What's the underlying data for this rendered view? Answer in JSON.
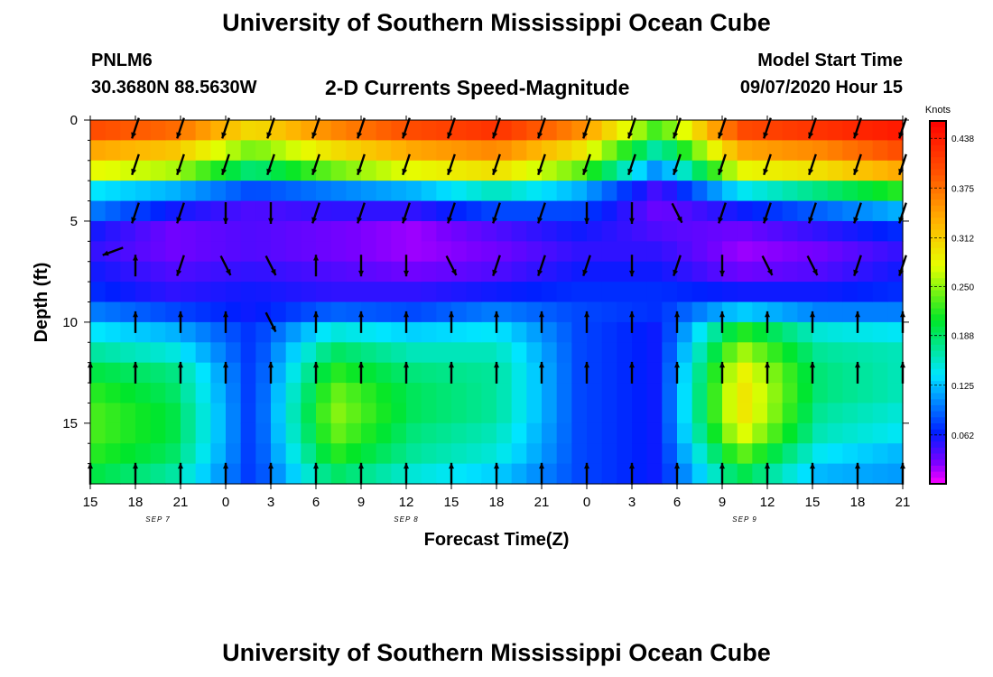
{
  "header": {
    "title": "University of Southern Mississippi Ocean Cube",
    "station_name": "PNLM6",
    "station_coords": "30.3680N 88.5630W",
    "subtitle": "2-D Currents Speed-Magnitude",
    "model_label": "Model Start Time",
    "model_value": "09/07/2020 Hour 15"
  },
  "footer": {
    "title": "University of Southern Mississippi Ocean Cube"
  },
  "chart_data": {
    "type": "heatmap",
    "xlabel": "Forecast Time(Z)",
    "ylabel": "Depth (ft)",
    "x_tick_labels": [
      "15",
      "18",
      "21",
      "0",
      "3",
      "6",
      "9",
      "12",
      "15",
      "18",
      "21",
      "0",
      "3",
      "6",
      "9",
      "12",
      "15",
      "18",
      "21"
    ],
    "x_hours": [
      0,
      54
    ],
    "date_labels": [
      {
        "label": "SEP 7",
        "hour": 4.5
      },
      {
        "label": "SEP 8",
        "hour": 21
      },
      {
        "label": "SEP 9",
        "hour": 43.5
      }
    ],
    "y_tick_labels": [
      "0",
      "5",
      "10",
      "15"
    ],
    "y_ticks": [
      0,
      5,
      10,
      15
    ],
    "ylim": [
      0,
      18
    ],
    "colorbar": {
      "title": "Knots",
      "tick_labels": [
        "0.438",
        "0.375",
        "0.312",
        "0.250",
        "0.188",
        "0.125",
        "0.062"
      ],
      "ticks": [
        0.438,
        0.375,
        0.312,
        0.25,
        0.188,
        0.125,
        0.062
      ],
      "range": [
        0,
        0.46
      ]
    },
    "depth_rows": [
      0.5,
      1.5,
      2.5,
      3.5,
      4.5,
      5.5,
      6.5,
      7.5,
      8.5,
      9.5,
      10.5,
      11.5,
      12.5,
      13.5,
      14.5,
      15.5,
      16.5,
      17.5
    ],
    "speed_profiles": [
      [
        0.4,
        0.34,
        0.28,
        0.14,
        0.1,
        0.06,
        0.05,
        0.06,
        0.07,
        0.1,
        0.14,
        0.17,
        0.2,
        0.22,
        0.23,
        0.23,
        0.22,
        0.2
      ],
      [
        0.38,
        0.32,
        0.26,
        0.12,
        0.06,
        0.03,
        0.03,
        0.04,
        0.05,
        0.08,
        0.12,
        0.15,
        0.18,
        0.19,
        0.2,
        0.2,
        0.19,
        0.17
      ],
      [
        0.3,
        0.24,
        0.18,
        0.08,
        0.04,
        0.04,
        0.04,
        0.05,
        0.06,
        0.06,
        0.07,
        0.07,
        0.07,
        0.07,
        0.07,
        0.07,
        0.07,
        0.07
      ],
      [
        0.36,
        0.3,
        0.24,
        0.1,
        0.05,
        0.03,
        0.03,
        0.04,
        0.05,
        0.09,
        0.15,
        0.19,
        0.22,
        0.24,
        0.25,
        0.24,
        0.22,
        0.19
      ],
      [
        0.4,
        0.34,
        0.28,
        0.12,
        0.05,
        0.02,
        0.02,
        0.03,
        0.05,
        0.08,
        0.13,
        0.16,
        0.18,
        0.19,
        0.19,
        0.18,
        0.17,
        0.15
      ],
      [
        0.42,
        0.36,
        0.3,
        0.16,
        0.08,
        0.04,
        0.03,
        0.04,
        0.06,
        0.1,
        0.14,
        0.16,
        0.17,
        0.17,
        0.17,
        0.16,
        0.15,
        0.13
      ],
      [
        0.36,
        0.3,
        0.24,
        0.12,
        0.08,
        0.06,
        0.05,
        0.06,
        0.07,
        0.08,
        0.08,
        0.08,
        0.08,
        0.08,
        0.08,
        0.08,
        0.08,
        0.08
      ],
      [
        0.22,
        0.16,
        0.1,
        0.04,
        0.03,
        0.04,
        0.05,
        0.06,
        0.07,
        0.07,
        0.06,
        0.06,
        0.06,
        0.06,
        0.06,
        0.06,
        0.06,
        0.06
      ],
      [
        0.4,
        0.34,
        0.28,
        0.14,
        0.06,
        0.03,
        0.02,
        0.03,
        0.06,
        0.13,
        0.22,
        0.26,
        0.29,
        0.3,
        0.3,
        0.28,
        0.24,
        0.2
      ],
      [
        0.42,
        0.36,
        0.3,
        0.18,
        0.09,
        0.05,
        0.03,
        0.04,
        0.06,
        0.1,
        0.15,
        0.17,
        0.18,
        0.18,
        0.17,
        0.16,
        0.14,
        0.12
      ],
      [
        0.44,
        0.4,
        0.34,
        0.22,
        0.12,
        0.07,
        0.05,
        0.06,
        0.07,
        0.1,
        0.14,
        0.16,
        0.16,
        0.16,
        0.15,
        0.14,
        0.12,
        0.11
      ]
    ],
    "arrows": [
      {
        "hour": 3,
        "depth": 0.4,
        "dir": "dsw"
      },
      {
        "hour": 6,
        "depth": 0.4,
        "dir": "dsw"
      },
      {
        "hour": 9,
        "depth": 0.4,
        "dir": "dsw"
      },
      {
        "hour": 12,
        "depth": 0.4,
        "dir": "dsw"
      },
      {
        "hour": 15,
        "depth": 0.4,
        "dir": "dsw"
      },
      {
        "hour": 18,
        "depth": 0.4,
        "dir": "dsw"
      },
      {
        "hour": 21,
        "depth": 0.4,
        "dir": "dsw"
      },
      {
        "hour": 24,
        "depth": 0.4,
        "dir": "dsw"
      },
      {
        "hour": 27,
        "depth": 0.4,
        "dir": "dsw"
      },
      {
        "hour": 30,
        "depth": 0.4,
        "dir": "dsw"
      },
      {
        "hour": 33,
        "depth": 0.4,
        "dir": "dsw"
      },
      {
        "hour": 36,
        "depth": 0.4,
        "dir": "dsw"
      },
      {
        "hour": 39,
        "depth": 0.4,
        "dir": "dsw"
      },
      {
        "hour": 42,
        "depth": 0.4,
        "dir": "dsw"
      },
      {
        "hour": 45,
        "depth": 0.4,
        "dir": "dsw"
      },
      {
        "hour": 48,
        "depth": 0.4,
        "dir": "dsw"
      },
      {
        "hour": 51,
        "depth": 0.4,
        "dir": "dsw"
      },
      {
        "hour": 54,
        "depth": 0.4,
        "dir": "dsw"
      },
      {
        "hour": 3,
        "depth": 2.2,
        "dir": "dsw"
      },
      {
        "hour": 6,
        "depth": 2.2,
        "dir": "dsw"
      },
      {
        "hour": 9,
        "depth": 2.2,
        "dir": "dsw"
      },
      {
        "hour": 12,
        "depth": 2.2,
        "dir": "dsw"
      },
      {
        "hour": 15,
        "depth": 2.2,
        "dir": "dsw"
      },
      {
        "hour": 18,
        "depth": 2.2,
        "dir": "dsw"
      },
      {
        "hour": 21,
        "depth": 2.2,
        "dir": "dsw"
      },
      {
        "hour": 24,
        "depth": 2.2,
        "dir": "dsw"
      },
      {
        "hour": 27,
        "depth": 2.2,
        "dir": "dsw"
      },
      {
        "hour": 30,
        "depth": 2.2,
        "dir": "dsw"
      },
      {
        "hour": 33,
        "depth": 2.2,
        "dir": "dsw"
      },
      {
        "hour": 36,
        "depth": 2.2,
        "dir": "dsw"
      },
      {
        "hour": 39,
        "depth": 2.2,
        "dir": "dsw"
      },
      {
        "hour": 42,
        "depth": 2.2,
        "dir": "dsw"
      },
      {
        "hour": 45,
        "depth": 2.2,
        "dir": "dsw"
      },
      {
        "hour": 48,
        "depth": 2.2,
        "dir": "dsw"
      },
      {
        "hour": 51,
        "depth": 2.2,
        "dir": "dsw"
      },
      {
        "hour": 54,
        "depth": 2.2,
        "dir": "dsw"
      },
      {
        "hour": 3,
        "depth": 4.6,
        "dir": "dsw"
      },
      {
        "hour": 6,
        "depth": 4.6,
        "dir": "dsw"
      },
      {
        "hour": 9,
        "depth": 4.6,
        "dir": "d"
      },
      {
        "hour": 12,
        "depth": 4.6,
        "dir": "d"
      },
      {
        "hour": 15,
        "depth": 4.6,
        "dir": "dsw"
      },
      {
        "hour": 18,
        "depth": 4.6,
        "dir": "dsw"
      },
      {
        "hour": 21,
        "depth": 4.6,
        "dir": "dsw"
      },
      {
        "hour": 24,
        "depth": 4.6,
        "dir": "dsw"
      },
      {
        "hour": 27,
        "depth": 4.6,
        "dir": "dsw"
      },
      {
        "hour": 30,
        "depth": 4.6,
        "dir": "dsw"
      },
      {
        "hour": 33,
        "depth": 4.6,
        "dir": "d"
      },
      {
        "hour": 36,
        "depth": 4.6,
        "dir": "d"
      },
      {
        "hour": 39,
        "depth": 4.6,
        "dir": "dse"
      },
      {
        "hour": 42,
        "depth": 4.6,
        "dir": "dsw"
      },
      {
        "hour": 45,
        "depth": 4.6,
        "dir": "dsw"
      },
      {
        "hour": 48,
        "depth": 4.6,
        "dir": "dsw"
      },
      {
        "hour": 51,
        "depth": 4.6,
        "dir": "dsw"
      },
      {
        "hour": 54,
        "depth": 4.6,
        "dir": "dsw"
      },
      {
        "hour": 1.5,
        "depth": 6.5,
        "dir": "w"
      },
      {
        "hour": 3,
        "depth": 7.2,
        "dir": "u"
      },
      {
        "hour": 6,
        "depth": 7.2,
        "dir": "dsw"
      },
      {
        "hour": 9,
        "depth": 7.2,
        "dir": "dse"
      },
      {
        "hour": 12,
        "depth": 7.2,
        "dir": "dse"
      },
      {
        "hour": 15,
        "depth": 7.2,
        "dir": "u"
      },
      {
        "hour": 18,
        "depth": 7.2,
        "dir": "d"
      },
      {
        "hour": 21,
        "depth": 7.2,
        "dir": "d"
      },
      {
        "hour": 24,
        "depth": 7.2,
        "dir": "dse"
      },
      {
        "hour": 27,
        "depth": 7.2,
        "dir": "dsw"
      },
      {
        "hour": 30,
        "depth": 7.2,
        "dir": "dsw"
      },
      {
        "hour": 33,
        "depth": 7.2,
        "dir": "dsw"
      },
      {
        "hour": 36,
        "depth": 7.2,
        "dir": "d"
      },
      {
        "hour": 39,
        "depth": 7.2,
        "dir": "dsw"
      },
      {
        "hour": 42,
        "depth": 7.2,
        "dir": "d"
      },
      {
        "hour": 45,
        "depth": 7.2,
        "dir": "dse"
      },
      {
        "hour": 48,
        "depth": 7.2,
        "dir": "dse"
      },
      {
        "hour": 51,
        "depth": 7.2,
        "dir": "dsw"
      },
      {
        "hour": 54,
        "depth": 7.2,
        "dir": "dsw"
      },
      {
        "hour": 3,
        "depth": 10,
        "dir": "u"
      },
      {
        "hour": 6,
        "depth": 10,
        "dir": "u"
      },
      {
        "hour": 9,
        "depth": 10,
        "dir": "u"
      },
      {
        "hour": 12,
        "depth": 10,
        "dir": "dse"
      },
      {
        "hour": 15,
        "depth": 10,
        "dir": "u"
      },
      {
        "hour": 18,
        "depth": 10,
        "dir": "u"
      },
      {
        "hour": 21,
        "depth": 10,
        "dir": "u"
      },
      {
        "hour": 24,
        "depth": 10,
        "dir": "u"
      },
      {
        "hour": 27,
        "depth": 10,
        "dir": "u"
      },
      {
        "hour": 30,
        "depth": 10,
        "dir": "u"
      },
      {
        "hour": 33,
        "depth": 10,
        "dir": "u"
      },
      {
        "hour": 36,
        "depth": 10,
        "dir": "u"
      },
      {
        "hour": 39,
        "depth": 10,
        "dir": "u"
      },
      {
        "hour": 42,
        "depth": 10,
        "dir": "u"
      },
      {
        "hour": 45,
        "depth": 10,
        "dir": "u"
      },
      {
        "hour": 48,
        "depth": 10,
        "dir": "u"
      },
      {
        "hour": 51,
        "depth": 10,
        "dir": "u"
      },
      {
        "hour": 54,
        "depth": 10,
        "dir": "u"
      },
      {
        "hour": 0,
        "depth": 12.5,
        "dir": "u"
      },
      {
        "hour": 3,
        "depth": 12.5,
        "dir": "u"
      },
      {
        "hour": 6,
        "depth": 12.5,
        "dir": "u"
      },
      {
        "hour": 9,
        "depth": 12.5,
        "dir": "u"
      },
      {
        "hour": 12,
        "depth": 12.5,
        "dir": "u"
      },
      {
        "hour": 15,
        "depth": 12.5,
        "dir": "u"
      },
      {
        "hour": 18,
        "depth": 12.5,
        "dir": "u"
      },
      {
        "hour": 21,
        "depth": 12.5,
        "dir": "u"
      },
      {
        "hour": 24,
        "depth": 12.5,
        "dir": "u"
      },
      {
        "hour": 27,
        "depth": 12.5,
        "dir": "u"
      },
      {
        "hour": 30,
        "depth": 12.5,
        "dir": "u"
      },
      {
        "hour": 33,
        "depth": 12.5,
        "dir": "u"
      },
      {
        "hour": 36,
        "depth": 12.5,
        "dir": "u"
      },
      {
        "hour": 39,
        "depth": 12.5,
        "dir": "u"
      },
      {
        "hour": 42,
        "depth": 12.5,
        "dir": "u"
      },
      {
        "hour": 45,
        "depth": 12.5,
        "dir": "u"
      },
      {
        "hour": 48,
        "depth": 12.5,
        "dir": "u"
      },
      {
        "hour": 51,
        "depth": 12.5,
        "dir": "u"
      },
      {
        "hour": 54,
        "depth": 12.5,
        "dir": "u"
      },
      {
        "hour": 0,
        "depth": 17.5,
        "dir": "u"
      },
      {
        "hour": 3,
        "depth": 17.5,
        "dir": "u"
      },
      {
        "hour": 6,
        "depth": 17.5,
        "dir": "u"
      },
      {
        "hour": 9,
        "depth": 17.5,
        "dir": "u"
      },
      {
        "hour": 12,
        "depth": 17.5,
        "dir": "u"
      },
      {
        "hour": 15,
        "depth": 17.5,
        "dir": "u"
      },
      {
        "hour": 18,
        "depth": 17.5,
        "dir": "u"
      },
      {
        "hour": 21,
        "depth": 17.5,
        "dir": "u"
      },
      {
        "hour": 24,
        "depth": 17.5,
        "dir": "u"
      },
      {
        "hour": 27,
        "depth": 17.5,
        "dir": "u"
      },
      {
        "hour": 30,
        "depth": 17.5,
        "dir": "u"
      },
      {
        "hour": 33,
        "depth": 17.5,
        "dir": "u"
      },
      {
        "hour": 36,
        "depth": 17.5,
        "dir": "u"
      },
      {
        "hour": 39,
        "depth": 17.5,
        "dir": "u"
      },
      {
        "hour": 42,
        "depth": 17.5,
        "dir": "u"
      },
      {
        "hour": 45,
        "depth": 17.5,
        "dir": "u"
      },
      {
        "hour": 48,
        "depth": 17.5,
        "dir": "u"
      },
      {
        "hour": 51,
        "depth": 17.5,
        "dir": "u"
      },
      {
        "hour": 54,
        "depth": 17.5,
        "dir": "u"
      }
    ]
  }
}
